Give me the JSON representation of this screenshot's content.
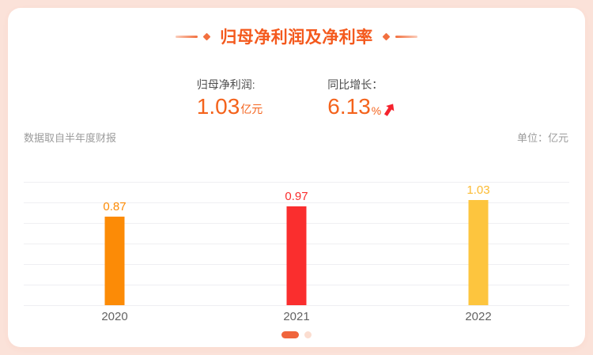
{
  "page": {
    "background_color": "#fbe2d9",
    "card_background": "#ffffff"
  },
  "header": {
    "title": "归母净利润及净利率",
    "accent_color": "#f4591d",
    "decoration_color": "#f2703f"
  },
  "stats": {
    "net_profit": {
      "label": "归母净利润:",
      "value": "1.03",
      "unit": "亿元"
    },
    "yoy_growth": {
      "label": "同比增长：",
      "value": "6.13",
      "unit": "%",
      "trend": "up"
    }
  },
  "theme": {
    "stat_value_color": "#f4631c",
    "stat_label_color": "#4c4c4c",
    "note_color": "#9b9b9b",
    "arrow_color": "#f5222d",
    "gridline_color": "#efeff2"
  },
  "meta": {
    "source_note": "数据取自半年度财报",
    "unit_note": "单位：亿元"
  },
  "chart_data": {
    "type": "bar",
    "title": "归母净利润及净利率",
    "series_name": "归母净利润",
    "categories": [
      "2020",
      "2021",
      "2022"
    ],
    "values": [
      0.87,
      0.97,
      1.03
    ],
    "unit": "亿元",
    "ylim": [
      0,
      1.21
    ],
    "grid": true,
    "gridline_count": 7,
    "legend": false,
    "bar_colors": [
      "#fc8b06",
      "#fa2e2e",
      "#fdc53e"
    ],
    "value_label_colors": [
      "#fc8b06",
      "#fa2e2e",
      "#fcbb32"
    ],
    "x_label_color": "#636363"
  },
  "pagination": {
    "dots": [
      {
        "active": true
      },
      {
        "active": false
      }
    ],
    "active_color": "#f0653c",
    "inactive_color": "#fbddd0"
  }
}
